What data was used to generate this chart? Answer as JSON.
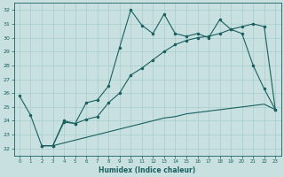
{
  "title": "",
  "xlabel": "Humidex (Indice chaleur)",
  "xlim": [
    -0.5,
    23.5
  ],
  "ylim": [
    21.5,
    32.5
  ],
  "yticks": [
    22,
    23,
    24,
    25,
    26,
    27,
    28,
    29,
    30,
    31,
    32
  ],
  "xticks": [
    0,
    1,
    2,
    3,
    4,
    5,
    6,
    7,
    8,
    9,
    10,
    11,
    12,
    13,
    14,
    15,
    16,
    17,
    18,
    19,
    20,
    21,
    22,
    23
  ],
  "bg_color": "#c8e0e0",
  "line_color": "#1a6060",
  "grid_color": "#a8cccc",
  "line1_x": [
    0,
    1,
    2,
    3,
    4,
    5,
    6,
    7,
    8,
    9,
    10,
    11,
    12,
    13,
    14,
    15,
    16,
    17,
    18,
    19,
    20,
    21,
    22,
    23
  ],
  "line1_y": [
    25.8,
    24.4,
    22.2,
    22.2,
    24.0,
    23.8,
    25.3,
    25.5,
    26.5,
    29.3,
    32.0,
    30.9,
    30.3,
    31.7,
    30.3,
    30.1,
    30.3,
    30.0,
    31.3,
    30.6,
    30.3,
    28.0,
    26.3,
    24.8
  ],
  "line2_x": [
    2,
    3,
    4,
    5,
    6,
    7,
    8,
    9,
    10,
    11,
    12,
    13,
    14,
    15,
    16,
    17,
    18,
    19,
    20,
    21,
    22,
    23
  ],
  "line2_y": [
    22.2,
    22.2,
    23.9,
    23.8,
    24.1,
    24.3,
    25.3,
    26.0,
    27.3,
    27.8,
    28.4,
    29.0,
    29.5,
    29.8,
    30.0,
    30.1,
    30.3,
    30.6,
    30.8,
    31.0,
    30.8,
    24.8
  ],
  "line3_x": [
    2,
    3,
    4,
    5,
    6,
    7,
    8,
    9,
    10,
    11,
    12,
    13,
    14,
    15,
    16,
    17,
    18,
    19,
    20,
    21,
    22,
    23
  ],
  "line3_y": [
    22.2,
    22.2,
    22.4,
    22.6,
    22.8,
    23.0,
    23.2,
    23.4,
    23.6,
    23.8,
    24.0,
    24.2,
    24.3,
    24.5,
    24.6,
    24.7,
    24.8,
    24.9,
    25.0,
    25.1,
    25.2,
    24.8
  ]
}
